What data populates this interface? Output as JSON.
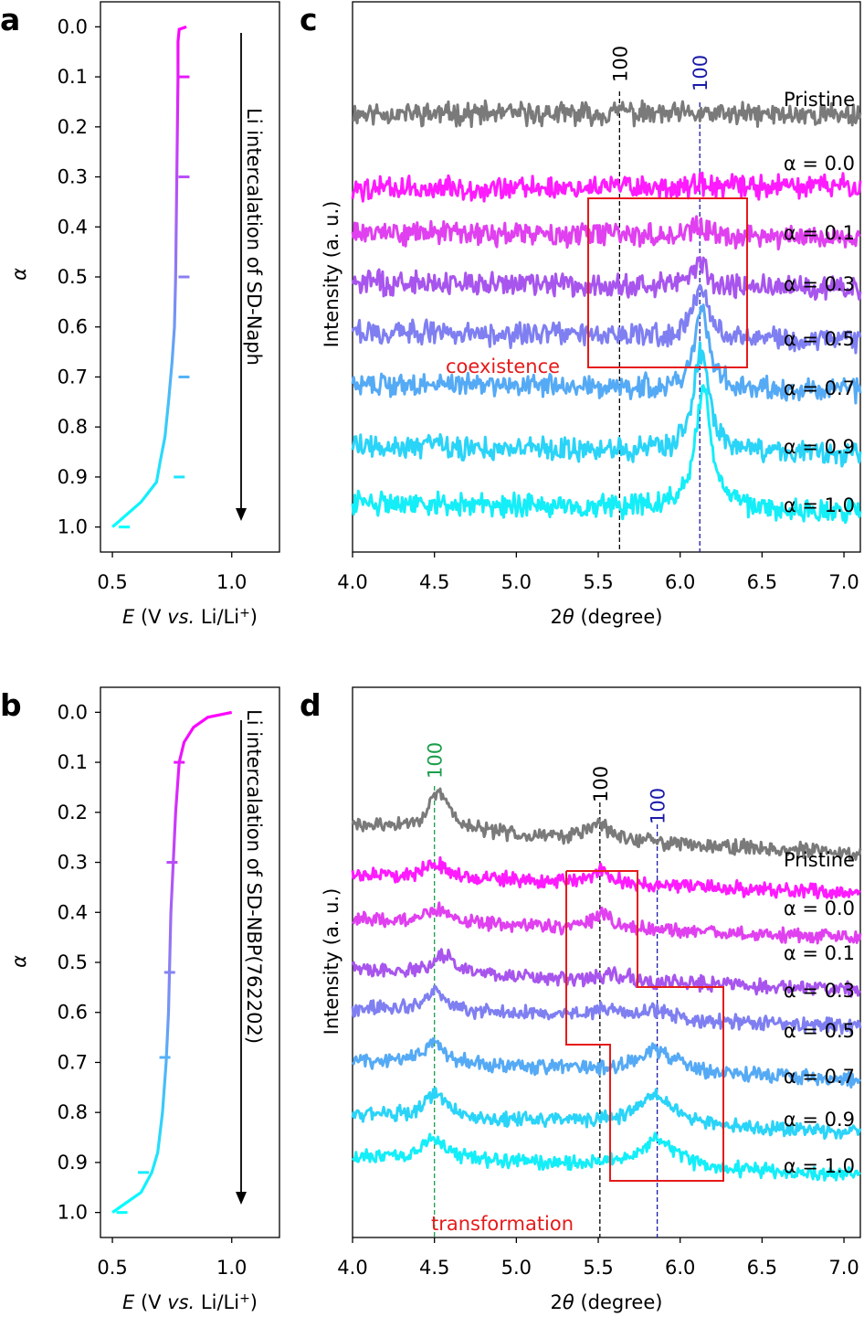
{
  "chart_data": [
    {
      "panel": "a",
      "type": "line",
      "xlabel": "E (V vs. Li/Li+)",
      "ylabel": "α",
      "xlim": [
        0.45,
        1.2
      ],
      "ylim": [
        1.05,
        -0.05
      ],
      "x_ticks": [
        "0.5",
        "1.0"
      ],
      "y_ticks": [
        "0.0",
        "0.1",
        "0.2",
        "0.3",
        "0.4",
        "0.5",
        "0.6",
        "0.7",
        "0.8",
        "0.9",
        "1.0"
      ],
      "annotation": "Li intercalation of SD-Naph",
      "curve": {
        "x": [
          0.81,
          0.78,
          0.775,
          0.775,
          0.77,
          0.765,
          0.76,
          0.75,
          0.735,
          0.72,
          0.7,
          0.685,
          0.62,
          0.5
        ],
        "y": [
          0.0,
          0.005,
          0.03,
          0.1,
          0.3,
          0.5,
          0.6,
          0.67,
          0.75,
          0.82,
          0.87,
          0.91,
          0.95,
          1.0
        ]
      },
      "markers": [
        {
          "alpha": 0.1,
          "E": 0.8
        },
        {
          "alpha": 0.3,
          "E": 0.8
        },
        {
          "alpha": 0.5,
          "E": 0.8
        },
        {
          "alpha": 0.7,
          "E": 0.8
        },
        {
          "alpha": 0.9,
          "E": 0.78
        },
        {
          "alpha": 1.0,
          "E": 0.55
        }
      ]
    },
    {
      "panel": "b",
      "type": "line",
      "xlabel": "E (V vs. Li/Li+)",
      "ylabel": "α",
      "xlim": [
        0.45,
        1.2
      ],
      "ylim": [
        1.05,
        -0.05
      ],
      "x_ticks": [
        "0.5",
        "1.0"
      ],
      "y_ticks": [
        "0.0",
        "0.1",
        "0.2",
        "0.3",
        "0.4",
        "0.5",
        "0.6",
        "0.7",
        "0.8",
        "0.9",
        "1.0"
      ],
      "annotation": "Li intercalation of SD-NBP(762202)",
      "curve": {
        "x": [
          1.0,
          0.9,
          0.84,
          0.8,
          0.78,
          0.765,
          0.755,
          0.745,
          0.74,
          0.735,
          0.725,
          0.71,
          0.69,
          0.665,
          0.62,
          0.5
        ],
        "y": [
          0.0,
          0.01,
          0.03,
          0.06,
          0.1,
          0.2,
          0.3,
          0.4,
          0.5,
          0.6,
          0.7,
          0.8,
          0.88,
          0.92,
          0.96,
          1.0
        ]
      },
      "markers": [
        {
          "alpha": 0.1,
          "E": 0.78
        },
        {
          "alpha": 0.3,
          "E": 0.75
        },
        {
          "alpha": 0.52,
          "E": 0.74
        },
        {
          "alpha": 0.69,
          "E": 0.72
        },
        {
          "alpha": 0.92,
          "E": 0.63
        },
        {
          "alpha": 1.0,
          "E": 0.54
        }
      ]
    },
    {
      "panel": "c",
      "type": "line",
      "xlabel": "2θ (degree)",
      "ylabel": "Intensity (a. u.)",
      "xlim": [
        4.0,
        7.1
      ],
      "x_ticks": [
        "4.0",
        "4.5",
        "5.0",
        "5.5",
        "6.0",
        "6.5",
        "7.0"
      ],
      "ref_lines": [
        {
          "x": 5.63,
          "label": "100",
          "color": "#000000"
        },
        {
          "x": 6.12,
          "label": "100",
          "color": "#1a1aaa"
        }
      ],
      "box": {
        "label": "coexistence",
        "x0": 5.42,
        "x1": 6.39
      },
      "series": [
        {
          "name": "Pristine",
          "color": "#7a7a7a",
          "start": 0.0,
          "end": -0.1,
          "peaks": [
            {
              "x": 5.65,
              "h": 0.35,
              "w": 0.03
            }
          ]
        },
        {
          "name": "α = 0.0",
          "color": "#ff1aff",
          "start": -0.4,
          "end": -0.2,
          "peaks": [
            {
              "x": 5.64,
              "h": 0.17,
              "w": 0.04
            },
            {
              "x": 6.09,
              "h": 0.1,
              "w": 0.03
            }
          ]
        },
        {
          "name": "α = 0.1",
          "color": "#e040f0",
          "start": 0.0,
          "end": -0.4,
          "peaks": [
            {
              "x": 5.64,
              "h": 0.3,
              "w": 0.03
            },
            {
              "x": 6.1,
              "h": 0.62,
              "w": 0.05
            }
          ]
        },
        {
          "name": "α = 0.3",
          "color": "#a855ee",
          "start": 0.0,
          "end": -0.4,
          "peaks": [
            {
              "x": 5.64,
              "h": 0.15,
              "w": 0.04
            },
            {
              "x": 6.12,
              "h": 1.7,
              "w": 0.05
            }
          ]
        },
        {
          "name": "α = 0.5",
          "color": "#7f7ff2",
          "start": 0.2,
          "end": -0.4,
          "peaks": [
            {
              "x": 5.64,
              "h": 0.25,
              "w": 0.03
            },
            {
              "x": 6.13,
              "h": 3.3,
              "w": 0.055
            }
          ]
        },
        {
          "name": "α = 0.7",
          "color": "#55aaf5",
          "start": 0.1,
          "end": -0.4,
          "peaks": [
            {
              "x": 6.13,
              "h": 5.0,
              "w": 0.055
            }
          ]
        },
        {
          "name": "α = 0.9",
          "color": "#2ad4f8",
          "start": 0.1,
          "end": -0.4,
          "peaks": [
            {
              "x": 6.13,
              "h": 6.5,
              "w": 0.055
            }
          ]
        },
        {
          "name": "α = 1.0",
          "color": "#14eef8",
          "start": 0.2,
          "end": -0.4,
          "peaks": [
            {
              "x": 6.14,
              "h": 8.0,
              "w": 0.055
            }
          ]
        }
      ]
    },
    {
      "panel": "d",
      "type": "line",
      "xlabel": "2θ (degree)",
      "ylabel": "Intensity (a. u.)",
      "xlim": [
        4.0,
        7.1
      ],
      "x_ticks": [
        "4.0",
        "4.5",
        "5.0",
        "5.5",
        "6.0",
        "6.5",
        "7.0"
      ],
      "ref_lines": [
        {
          "x": 4.5,
          "label": "100",
          "color": "#1a9e4a"
        },
        {
          "x": 5.51,
          "label": "100",
          "color": "#000000"
        },
        {
          "x": 5.86,
          "label": "100",
          "color": "#1a1aaa"
        }
      ],
      "box": {
        "label": "transformation"
      },
      "series": [
        {
          "name": "Pristine",
          "color": "#7a7a7a",
          "start": 0.4,
          "end": -1.0,
          "peaks": [
            {
              "x": 4.53,
              "h": 1.8,
              "w": 0.08
            },
            {
              "x": 5.5,
              "h": 0.8,
              "w": 0.07
            }
          ]
        },
        {
          "name": "α = 0.0",
          "color": "#ff1aff",
          "start": 0.4,
          "end": -0.5,
          "peaks": [
            {
              "x": 4.5,
              "h": 0.8,
              "w": 0.08
            },
            {
              "x": 5.52,
              "h": 0.6,
              "w": 0.07
            }
          ]
        },
        {
          "name": "α = 0.1",
          "color": "#e040f0",
          "start": 0.3,
          "end": -0.6,
          "peaks": [
            {
              "x": 4.5,
              "h": 0.7,
              "w": 0.08
            },
            {
              "x": 5.52,
              "h": 0.7,
              "w": 0.07
            }
          ]
        },
        {
          "name": "α = 0.3",
          "color": "#a855ee",
          "start": 0.4,
          "end": -0.6,
          "peaks": [
            {
              "x": 4.55,
              "h": 0.9,
              "w": 0.08
            },
            {
              "x": 5.6,
              "h": 0.3,
              "w": 0.1
            }
          ]
        },
        {
          "name": "α = 0.5",
          "color": "#7f7ff2",
          "start": 0.3,
          "end": -0.6,
          "peaks": [
            {
              "x": 4.5,
              "h": 1.0,
              "w": 0.08
            },
            {
              "x": 5.55,
              "h": 0.4,
              "w": 0.1
            },
            {
              "x": 5.85,
              "h": 0.4,
              "w": 0.12
            }
          ]
        },
        {
          "name": "α = 0.7",
          "color": "#55aaf5",
          "start": 0.3,
          "end": -0.6,
          "peaks": [
            {
              "x": 4.5,
              "h": 1.1,
              "w": 0.08
            },
            {
              "x": 5.86,
              "h": 1.1,
              "w": 0.13
            }
          ]
        },
        {
          "name": "α = 0.9",
          "color": "#2ad4f8",
          "start": 0.3,
          "end": -0.6,
          "peaks": [
            {
              "x": 4.5,
              "h": 1.1,
              "w": 0.08
            },
            {
              "x": 5.85,
              "h": 1.5,
              "w": 0.13
            }
          ]
        },
        {
          "name": "α = 1.0",
          "color": "#14eef8",
          "start": 0.3,
          "end": -0.6,
          "peaks": [
            {
              "x": 4.5,
              "h": 1.0,
              "w": 0.08
            },
            {
              "x": 5.86,
              "h": 1.4,
              "w": 0.13
            }
          ]
        }
      ]
    }
  ]
}
